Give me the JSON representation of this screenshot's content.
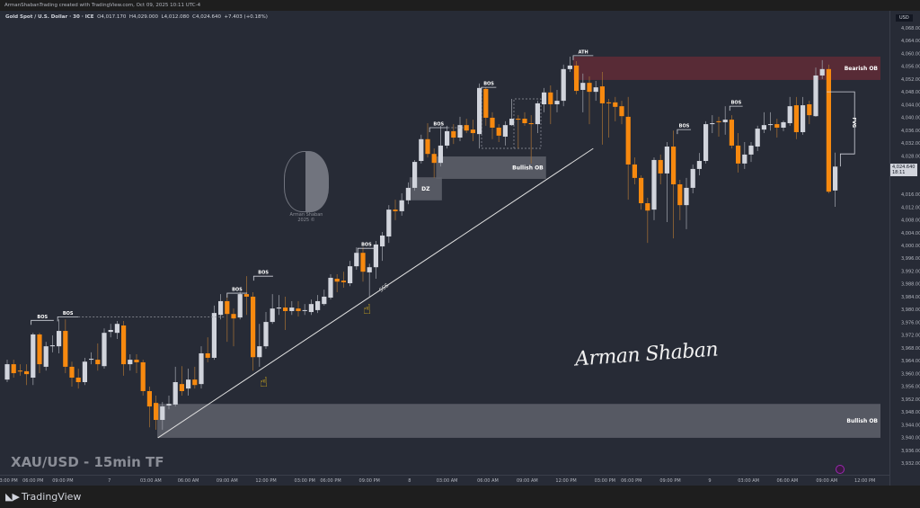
{
  "topbar": {
    "attribution": "ArmanShabanTrading created with TradingView.com, Oct 09, 2025 10:11 UTC-4"
  },
  "legend": {
    "symbol": "Gold Spot / U.S. Dollar · 30 · ICE",
    "open": "O4,017.170",
    "high": "H4,029.000",
    "low": "L4,012.080",
    "close": "C4,024.640",
    "change": "+7.403 (+0.18%)"
  },
  "axis": {
    "currency": "USD",
    "last_price": "4,024.640",
    "countdown": "18:11"
  },
  "overlay": {
    "pair_title": "XAU/USD - 15min TF",
    "signature": "Arman Shaban",
    "watermark_name": "Arman Shaban",
    "watermark_year": "2025 ©"
  },
  "footer": {
    "brand": "TradingView",
    "logo": "17"
  },
  "colors": {
    "background": "#272b36",
    "bull": "#d1d4dc",
    "bear": "#f7890f",
    "bear_wick": "#9a6a35",
    "bull_wick": "#9598a1",
    "bearish_zone": "#5b2b37",
    "bullish_zone": "#5f626b"
  },
  "chart_data": {
    "type": "candlestick",
    "title": "",
    "ylim": [
      3928,
      4070
    ],
    "y_tick_step": 4,
    "y_tick_range": [
      3932,
      4068
    ],
    "candles": [
      [
        3958.1,
        3964.3,
        3957.3,
        3962.9
      ],
      [
        3962.9,
        3964.3,
        3958.7,
        3960.1
      ],
      [
        3960.9,
        3962.9,
        3959.3,
        3960.7
      ],
      [
        3960.7,
        3962.9,
        3956.4,
        3959.8
      ],
      [
        3958.7,
        3972.7,
        3956.4,
        3972.2
      ],
      [
        3972.2,
        3972.7,
        3960.1,
        3962.9
      ],
      [
        3962.1,
        3969.9,
        3960.9,
        3968.5
      ],
      [
        3968.5,
        3971.9,
        3966.6,
        3968.8
      ],
      [
        3968.5,
        3976.9,
        3966.3,
        3973.3
      ],
      [
        3973.3,
        3976.9,
        3960.1,
        3962.1
      ],
      [
        3962.1,
        3963.7,
        3955.9,
        3958.7
      ],
      [
        3958.7,
        3961.5,
        3955.3,
        3957.3
      ],
      [
        3957.3,
        3964.9,
        3956.4,
        3963.7
      ],
      [
        3964.3,
        3966.6,
        3962.9,
        3964.6
      ],
      [
        3964.3,
        3969.4,
        3960.9,
        3962.9
      ],
      [
        3962.3,
        3974.1,
        3961.5,
        3972.7
      ],
      [
        3973.0,
        3975.5,
        3971.3,
        3973.6
      ],
      [
        3972.7,
        3976.4,
        3970.8,
        3975.5
      ],
      [
        3975.0,
        3976.4,
        3959.3,
        3962.9
      ],
      [
        3962.9,
        3966.0,
        3960.9,
        3964.3
      ],
      [
        3964.3,
        3966.0,
        3960.1,
        3963.5
      ],
      [
        3963.5,
        3964.3,
        3953.1,
        3954.5
      ],
      [
        3954.5,
        3955.9,
        3943.2,
        3949.7
      ],
      [
        3950.8,
        3953.1,
        3942.4,
        3945.5
      ],
      [
        3945.5,
        3951.1,
        3942.4,
        3949.7
      ],
      [
        3950.0,
        3953.1,
        3948.8,
        3950.5
      ],
      [
        3950.3,
        3962.1,
        3949.7,
        3957.3
      ],
      [
        3956.7,
        3962.3,
        3953.1,
        3954.5
      ],
      [
        3955.3,
        3961.5,
        3953.1,
        3958.1
      ],
      [
        3958.1,
        3962.1,
        3955.3,
        3956.4
      ],
      [
        3956.7,
        3968.5,
        3955.3,
        3966.3
      ],
      [
        3966.3,
        3971.3,
        3963.5,
        3964.9
      ],
      [
        3964.9,
        3981.2,
        3964.3,
        3978.9
      ],
      [
        3978.3,
        3984.8,
        3976.9,
        3982.6
      ],
      [
        3982.6,
        3984.8,
        3969.9,
        3978.6
      ],
      [
        3978.6,
        3980.3,
        3968.5,
        3977.2
      ],
      [
        3977.5,
        3985.4,
        3976.9,
        3984.8
      ],
      [
        3984.8,
        3990.4,
        3978.3,
        3984.0
      ],
      [
        3984.0,
        3985.4,
        3960.9,
        3965.1
      ],
      [
        3965.1,
        3975.5,
        3962.1,
        3968.5
      ],
      [
        3968.5,
        3979.2,
        3967.7,
        3976.1
      ],
      [
        3976.1,
        3984.8,
        3975.5,
        3980.3
      ],
      [
        3980.3,
        3984.5,
        3978.3,
        3980.6
      ],
      [
        3980.6,
        3984.0,
        3973.6,
        3979.5
      ],
      [
        3979.5,
        3982.6,
        3978.3,
        3980.6
      ],
      [
        3980.3,
        3982.6,
        3977.8,
        3979.5
      ],
      [
        3979.8,
        3981.7,
        3978.3,
        3979.8
      ],
      [
        3979.2,
        3983.1,
        3978.3,
        3981.7
      ],
      [
        3979.8,
        3984.5,
        3978.9,
        3982.6
      ],
      [
        3981.7,
        3986.2,
        3981.2,
        3984.0
      ],
      [
        3983.7,
        3991.0,
        3983.1,
        3989.9
      ],
      [
        3989.6,
        3991.0,
        3985.4,
        3988.7
      ],
      [
        3989.0,
        3991.8,
        3986.8,
        3988.5
      ],
      [
        3988.2,
        3995.2,
        3987.3,
        3993.5
      ],
      [
        3993.5,
        3999.4,
        3992.4,
        3997.7
      ],
      [
        3997.7,
        3999.4,
        3988.7,
        3991.8
      ],
      [
        3991.6,
        3994.3,
        3984.0,
        3993.2
      ],
      [
        3993.2,
        4001.4,
        3989.6,
        4000.3
      ],
      [
        3999.7,
        4004.2,
        3995.2,
        4003.1
      ],
      [
        4002.8,
        4012.6,
        4000.8,
        4011.2
      ],
      [
        4011.2,
        4014.3,
        4007.9,
        4010.7
      ],
      [
        4010.7,
        4016.3,
        4009.3,
        4014.1
      ],
      [
        4014.1,
        4019.7,
        4012.9,
        4018.0
      ],
      [
        4018.0,
        4026.7,
        4017.1,
        4026.1
      ],
      [
        4026.4,
        4034.6,
        4025.6,
        4033.2
      ],
      [
        4033.2,
        4038.2,
        4027.5,
        4028.6
      ],
      [
        4028.6,
        4030.3,
        4021.1,
        4025.8
      ],
      [
        4025.8,
        4037.4,
        4024.7,
        4031.2
      ],
      [
        4031.2,
        4037.4,
        4030.3,
        4035.7
      ],
      [
        4035.7,
        4037.9,
        4031.7,
        4033.7
      ],
      [
        4033.7,
        4040.2,
        4032.6,
        4037.6
      ],
      [
        4037.6,
        4039.6,
        4035.1,
        4035.9
      ],
      [
        4036.2,
        4039.3,
        4032.6,
        4035.1
      ],
      [
        4034.8,
        4050.6,
        4030.3,
        4049.2
      ],
      [
        4048.9,
        4049.4,
        4037.4,
        4039.9
      ],
      [
        4039.9,
        4041.6,
        4033.2,
        4036.8
      ],
      [
        4036.8,
        4037.9,
        4032.3,
        4034.3
      ],
      [
        4034.0,
        4038.8,
        4031.2,
        4037.6
      ],
      [
        4037.6,
        4045.8,
        4037.4,
        4039.6
      ],
      [
        4039.6,
        4040.7,
        4030.3,
        4039.3
      ],
      [
        4039.6,
        4041.6,
        4037.4,
        4038.2
      ],
      [
        4038.2,
        4040.7,
        4025.6,
        4037.9
      ],
      [
        4037.9,
        4045.2,
        4035.1,
        4044.4
      ],
      [
        4044.1,
        4049.2,
        4041.6,
        4047.8
      ],
      [
        4047.8,
        4050.0,
        4037.9,
        4044.1
      ],
      [
        4044.1,
        4048.6,
        4041.6,
        4045.2
      ],
      [
        4045.2,
        4056.5,
        4043.5,
        4055.1
      ],
      [
        4055.1,
        4059.0,
        4054.2,
        4056.2
      ],
      [
        4056.2,
        4057.6,
        4047.2,
        4048.3
      ],
      [
        4048.6,
        4053.7,
        4041.6,
        4050.8
      ],
      [
        4050.8,
        4052.8,
        4037.9,
        4048.0
      ],
      [
        4048.0,
        4051.4,
        4045.2,
        4049.4
      ],
      [
        4049.7,
        4054.2,
        4031.5,
        4044.4
      ],
      [
        4044.7,
        4045.8,
        4033.7,
        4044.4
      ],
      [
        4044.7,
        4046.4,
        4038.8,
        4043.3
      ],
      [
        4043.5,
        4045.2,
        4037.9,
        4040.4
      ],
      [
        4040.2,
        4046.4,
        4014.3,
        4025.3
      ],
      [
        4025.3,
        4027.5,
        4019.1,
        4021.1
      ],
      [
        4021.1,
        4021.9,
        4011.2,
        4013.2
      ],
      [
        4013.2,
        4014.9,
        4000.8,
        4010.9
      ],
      [
        4011.2,
        4027.5,
        4007.9,
        4026.7
      ],
      [
        4026.7,
        4028.4,
        4019.1,
        4022.5
      ],
      [
        4022.5,
        4032.3,
        4007.3,
        4030.9
      ],
      [
        4030.9,
        4035.9,
        4002.2,
        4019.1
      ],
      [
        4019.1,
        4020.5,
        4007.9,
        4012.6
      ],
      [
        4012.6,
        4021.1,
        4005.1,
        4018.0
      ],
      [
        4018.0,
        4025.3,
        4016.3,
        4023.9
      ],
      [
        4023.9,
        4028.9,
        4021.9,
        4026.4
      ],
      [
        4026.4,
        4038.8,
        4025.6,
        4037.9
      ],
      [
        4037.9,
        4040.7,
        4035.1,
        4038.2
      ],
      [
        4038.8,
        4040.2,
        4034.0,
        4038.5
      ],
      [
        4038.5,
        4043.5,
        4034.6,
        4039.3
      ],
      [
        4039.3,
        4040.7,
        4030.3,
        4031.2
      ],
      [
        4031.2,
        4035.1,
        4022.8,
        4025.6
      ],
      [
        4025.6,
        4032.3,
        4023.9,
        4028.4
      ],
      [
        4028.4,
        4032.3,
        4026.1,
        4031.2
      ],
      [
        4030.9,
        4037.4,
        4029.5,
        4036.5
      ],
      [
        4036.2,
        4041.6,
        4035.1,
        4037.6
      ],
      [
        4037.9,
        4041.6,
        4035.9,
        4037.9
      ],
      [
        4037.9,
        4039.6,
        4033.7,
        4036.8
      ],
      [
        4036.8,
        4039.0,
        4035.7,
        4038.5
      ],
      [
        4038.2,
        4046.4,
        4037.4,
        4043.5
      ],
      [
        4043.8,
        4046.4,
        4033.2,
        4035.4
      ],
      [
        4035.4,
        4046.4,
        4034.6,
        4043.8
      ],
      [
        4044.1,
        4045.2,
        4037.9,
        4040.7
      ],
      [
        4040.4,
        4055.6,
        4040.2,
        4053.1
      ],
      [
        4053.1,
        4057.9,
        4052.0,
        4055.1
      ],
      [
        4055.1,
        4056.5,
        4016.3,
        4016.8
      ],
      [
        4017.17,
        4029.0,
        4012.08,
        4024.64
      ]
    ],
    "x_ticks": [
      {
        "bar": 0,
        "label": "03:00 PM"
      },
      {
        "bar": 4,
        "label": "06:00 PM"
      },
      {
        "bar": 8.6,
        "label": "09:00 PM"
      },
      {
        "bar": 15.8,
        "label": "7"
      },
      {
        "bar": 22.2,
        "label": "03:00 AM"
      },
      {
        "bar": 28,
        "label": "06:00 AM"
      },
      {
        "bar": 34,
        "label": "09:00 AM"
      },
      {
        "bar": 40,
        "label": "12:00 PM"
      },
      {
        "bar": 46,
        "label": "03:00 PM"
      },
      {
        "bar": 50,
        "label": "06:00 PM"
      },
      {
        "bar": 56,
        "label": "09:00 PM"
      },
      {
        "bar": 62.2,
        "label": "8"
      },
      {
        "bar": 68,
        "label": "03:00 AM"
      },
      {
        "bar": 74.3,
        "label": "06:00 AM"
      },
      {
        "bar": 80.4,
        "label": "09:00 AM"
      },
      {
        "bar": 86.4,
        "label": "12:00 PM"
      },
      {
        "bar": 92.4,
        "label": "03:00 PM"
      },
      {
        "bar": 96.5,
        "label": "06:00 PM"
      },
      {
        "bar": 102.5,
        "label": "09:00 PM"
      },
      {
        "bar": 108.6,
        "label": "9"
      },
      {
        "bar": 114.6,
        "label": "03:00 AM"
      },
      {
        "bar": 120.6,
        "label": "06:00 AM"
      },
      {
        "bar": 126.7,
        "label": "09:00 AM"
      },
      {
        "bar": 132.6,
        "label": "12:00 PM"
      }
    ],
    "zones": [
      {
        "label": "Bearish OB",
        "kind": "bearish",
        "bar_from": 87.5,
        "bar_to": 135,
        "price_low": 4051.7,
        "price_high": 4059.0
      },
      {
        "label": "Bullish OB",
        "kind": "bullish",
        "bar_from": 23.2,
        "bar_to": 135,
        "price_low": 3939.9,
        "price_high": 3950.5
      },
      {
        "label": "Bullish OB",
        "kind": "bullish",
        "bar_from": 66.3,
        "bar_to": 83.3,
        "price_low": 4020.8,
        "price_high": 4027.8
      },
      {
        "label": "DZ",
        "kind": "bullish",
        "bar_from": 62.2,
        "bar_to": 67.2,
        "price_low": 4014.1,
        "price_high": 4021.3
      }
    ],
    "structure_marks": [
      {
        "label": "BOS",
        "bar_from": 3.7,
        "bar_to": 7.2,
        "price": 3976.6
      },
      {
        "label": "BOS",
        "bar_from": 7.8,
        "bar_to": 11,
        "price": 3977.7,
        "dashed_to": 33.6
      },
      {
        "label": "BOS",
        "bar_from": 34,
        "bar_to": 37.1,
        "price": 3985.1
      },
      {
        "label": "BOS",
        "bar_from": 38.1,
        "bar_to": 41.1,
        "price": 3990.4
      },
      {
        "label": "BOS",
        "bar_from": 54.2,
        "bar_to": 56.9,
        "price": 3999.1
      },
      {
        "label": "BOS",
        "bar_from": 65.3,
        "bar_to": 68.1,
        "price": 4036.8,
        "dashed_to": 70.5
      },
      {
        "label": "BOS",
        "bar_from": 73.3,
        "bar_to": 75.6,
        "price": 4049.4
      },
      {
        "label": "ATH",
        "bar_from": 87.5,
        "bar_to": 90.6,
        "price": 4059.3
      },
      {
        "label": "BOS",
        "bar_from": 103.6,
        "bar_to": 105.7,
        "price": 4036.2
      },
      {
        "label": "BOS",
        "bar_from": 111.7,
        "bar_to": 113.7,
        "price": 4043.5
      }
    ],
    "trendline": {
      "from": {
        "bar": 23.3,
        "price": 3939.9
      },
      "to": {
        "bar": 90.6,
        "price": 4030.3
      },
      "label": "SSS"
    },
    "fvg": {
      "label": "FVG",
      "bar_from": 126.7,
      "bar_to": 131,
      "price_high": 4048.0,
      "price_low": 4028.6,
      "return_bar": 128.8
    }
  }
}
